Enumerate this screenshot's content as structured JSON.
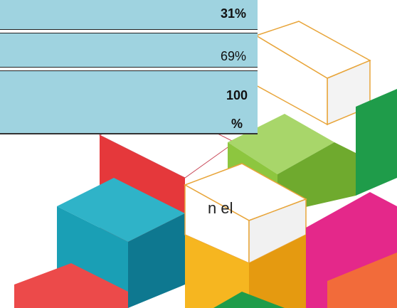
{
  "table": {
    "rows": [
      [
        "31%"
      ],
      [
        "69%"
      ],
      [
        "100 %"
      ]
    ]
  },
  "body_text": "n el"
}
